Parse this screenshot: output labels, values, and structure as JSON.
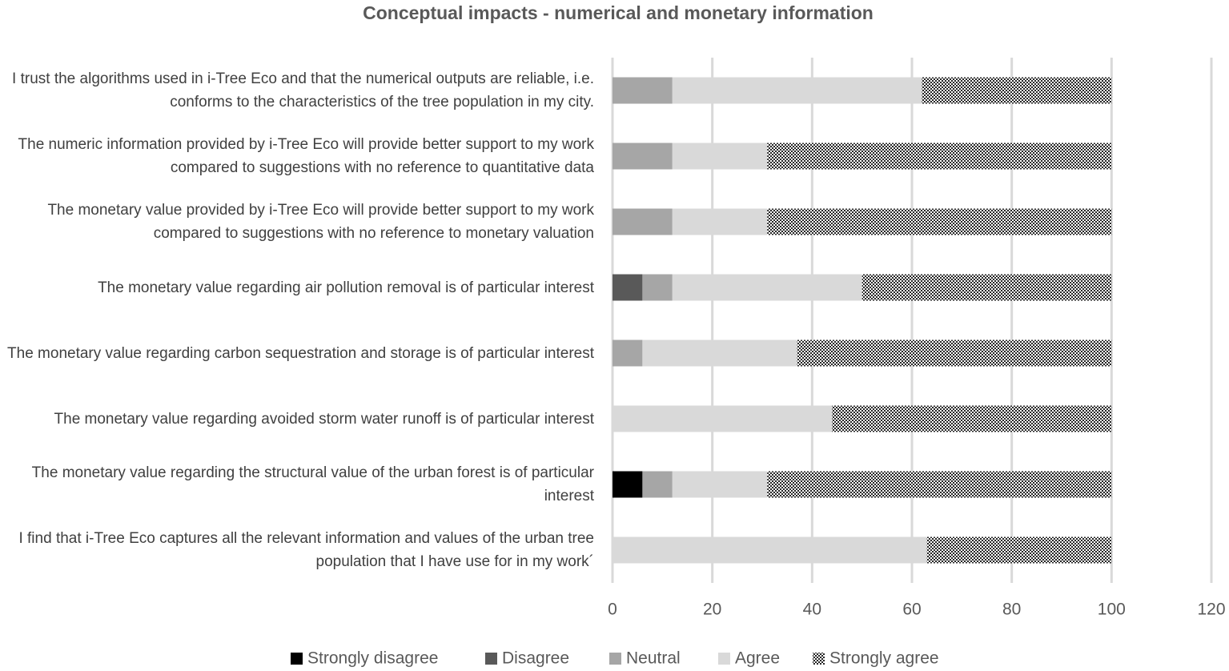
{
  "chart_data": {
    "type": "stacked-bar-horizontal",
    "title": "Conceptual impacts - numerical and monetary information",
    "categories": [
      "I trust the algorithms used in i-Tree Eco and that the numerical outputs are reliable, i.e. conforms to the characteristics of the tree population in my city.",
      "The numeric information provided by i-Tree Eco will provide better support to my work compared to suggestions with no reference to quantitative data",
      "The monetary value provided by i-Tree Eco will provide better support to my work compared to suggestions with no reference to monetary valuation",
      "The monetary value regarding air pollution removal is of particular interest",
      "The monetary value regarding carbon sequestration and storage is of particular interest",
      "The monetary value regarding avoided storm water runoff is of particular interest",
      "The monetary value regarding the structural value of the urban forest is of particular interest",
      "I find that i-Tree Eco captures all the relevant information and values of the urban tree population that I have use for in my work´"
    ],
    "series": [
      {
        "name": "Strongly disagree",
        "color": "#000000",
        "values": [
          0,
          0,
          0,
          0,
          0,
          0,
          6,
          0
        ]
      },
      {
        "name": "Disagree",
        "color": "#595959",
        "values": [
          0,
          0,
          0,
          6,
          0,
          0,
          0,
          0
        ]
      },
      {
        "name": "Neutral",
        "color": "#a6a6a6",
        "values": [
          12,
          12,
          12,
          6,
          6,
          0,
          6,
          0
        ]
      },
      {
        "name": "Agree",
        "color": "#d9d9d9",
        "values": [
          50,
          19,
          19,
          38,
          31,
          44,
          19,
          63
        ]
      },
      {
        "name": "Strongly agree",
        "color": "#262626",
        "pattern": "dots",
        "values": [
          38,
          69,
          69,
          50,
          63,
          56,
          69,
          37
        ]
      }
    ],
    "xlim": [
      0,
      120
    ],
    "xticks": [
      0,
      20,
      40,
      60,
      80,
      100,
      120
    ],
    "grid": true,
    "legend": "bottom"
  }
}
